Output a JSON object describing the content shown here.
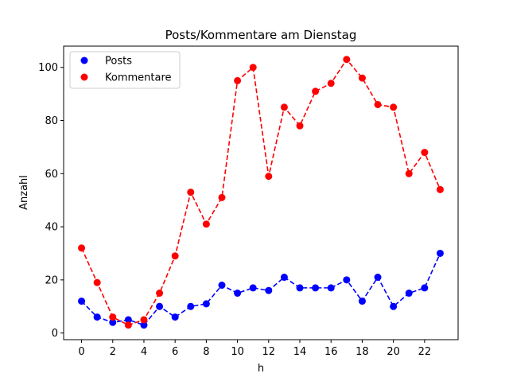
{
  "chart_data": {
    "type": "line",
    "title": "Posts/Kommentare am Dienstag",
    "xlabel": "h",
    "ylabel": "Anzahl",
    "x": [
      0,
      1,
      2,
      3,
      4,
      5,
      6,
      7,
      8,
      9,
      10,
      11,
      12,
      13,
      14,
      15,
      16,
      17,
      18,
      19,
      20,
      21,
      22,
      23
    ],
    "xlim": [
      -1.15,
      24.15
    ],
    "ylim": [
      -2.5,
      108
    ],
    "x_ticks": [
      0,
      2,
      4,
      6,
      8,
      10,
      12,
      14,
      16,
      18,
      20,
      22
    ],
    "y_ticks": [
      0,
      20,
      40,
      60,
      80,
      100
    ],
    "grid": false,
    "legend_position": "upper left",
    "series": [
      {
        "name": "Posts",
        "color": "#0000ff",
        "line_style": "dashed",
        "marker": "circle",
        "values": [
          12,
          6,
          4,
          5,
          3,
          10,
          6,
          10,
          11,
          18,
          15,
          17,
          16,
          21,
          17,
          17,
          17,
          20,
          12,
          21,
          10,
          15,
          17,
          30
        ]
      },
      {
        "name": "Kommentare",
        "color": "#ff0000",
        "line_style": "dashed",
        "marker": "circle",
        "values": [
          32,
          19,
          6,
          3,
          5,
          15,
          29,
          53,
          41,
          51,
          95,
          100,
          59,
          85,
          78,
          91,
          94,
          103,
          96,
          86,
          85,
          60,
          68,
          54
        ]
      }
    ]
  }
}
